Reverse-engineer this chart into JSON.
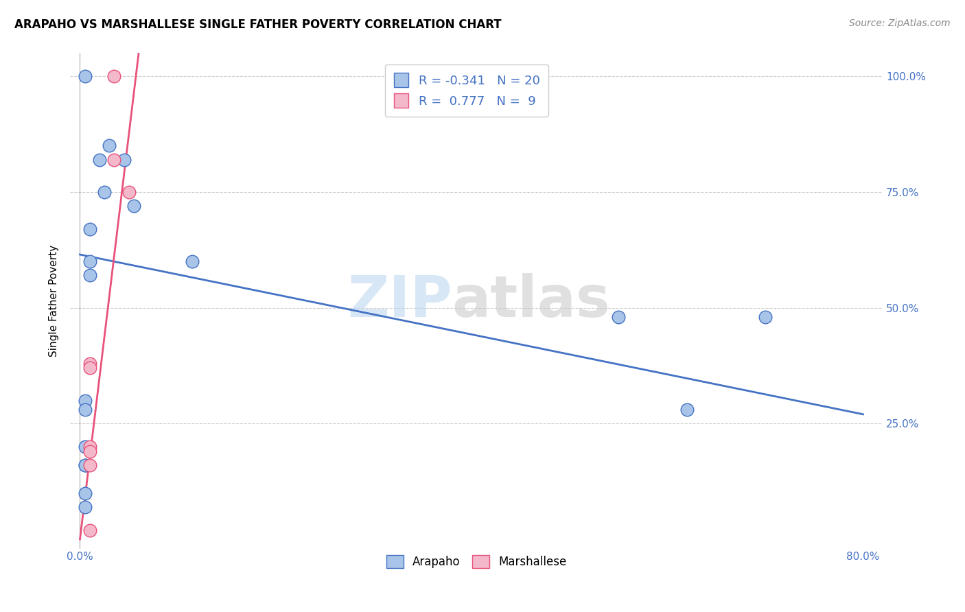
{
  "title": "ARAPAHO VS MARSHALLESE SINGLE FATHER POVERTY CORRELATION CHART",
  "source": "Source: ZipAtlas.com",
  "ylabel": "Single Father Poverty",
  "xlim": [
    -0.01,
    0.82
  ],
  "ylim": [
    -0.02,
    1.05
  ],
  "arapaho_x": [
    0.005,
    0.03,
    0.045,
    0.02,
    0.025,
    0.055,
    0.01,
    0.01,
    0.115,
    0.01,
    0.55,
    0.62,
    0.7,
    0.005,
    0.005,
    0.005,
    0.005,
    0.005,
    0.005,
    0.005
  ],
  "arapaho_y": [
    1.0,
    0.85,
    0.82,
    0.82,
    0.75,
    0.72,
    0.67,
    0.6,
    0.6,
    0.57,
    0.48,
    0.28,
    0.48,
    0.3,
    0.28,
    0.2,
    0.16,
    0.16,
    0.1,
    0.07
  ],
  "marshallese_x": [
    0.035,
    0.035,
    0.05,
    0.01,
    0.01,
    0.01,
    0.01,
    0.01,
    0.01
  ],
  "marshallese_y": [
    1.0,
    0.82,
    0.75,
    0.38,
    0.37,
    0.2,
    0.19,
    0.16,
    0.02
  ],
  "arapaho_color": "#a8c4e8",
  "marshallese_color": "#f4b8cb",
  "arapaho_line_color": "#4472c4",
  "marshallese_line_color": "#e8527a",
  "arapaho_R": -0.341,
  "arapaho_N": 20,
  "marshallese_R": 0.777,
  "marshallese_N": 9,
  "arapaho_trendline_x": [
    0.0,
    0.8
  ],
  "arapaho_trendline_y": [
    0.615,
    0.27
  ],
  "marshallese_trendline_x": [
    0.0,
    0.06
  ],
  "marshallese_trendline_y": [
    0.0,
    1.05
  ],
  "watermark_top": "ZIP",
  "watermark_bottom": "atlas",
  "background_color": "#ffffff",
  "grid_color": "#d0d0d0"
}
